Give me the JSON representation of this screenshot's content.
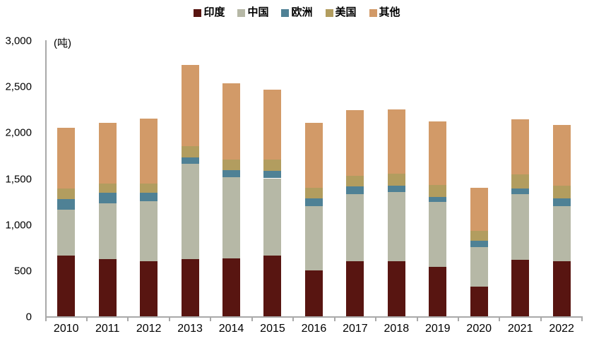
{
  "chart_data": {
    "type": "bar",
    "stacked": true,
    "title": "",
    "ylabel": "(吨)",
    "xlabel": "",
    "ylim": [
      0,
      3000
    ],
    "ytick_step": 500,
    "yticks": [
      "0",
      "500",
      "1,000",
      "1,500",
      "2,000",
      "2,500",
      "3,000"
    ],
    "grid": false,
    "legend_position": "top",
    "categories": [
      "2010",
      "2011",
      "2012",
      "2013",
      "2014",
      "2015",
      "2016",
      "2017",
      "2018",
      "2019",
      "2020",
      "2021",
      "2022"
    ],
    "series": [
      {
        "name": "印度",
        "color": "#581511",
        "values": [
          660,
          620,
          600,
          620,
          630,
          660,
          500,
          600,
          600,
          540,
          320,
          610,
          600
        ]
      },
      {
        "name": "中国",
        "color": "#b6b8a6",
        "values": [
          500,
          610,
          650,
          1040,
          880,
          840,
          700,
          730,
          750,
          700,
          430,
          720,
          600
        ]
      },
      {
        "name": "欧洲",
        "color": "#4f8195",
        "values": [
          110,
          110,
          90,
          70,
          80,
          80,
          80,
          80,
          70,
          60,
          70,
          60,
          80
        ]
      },
      {
        "name": "美国",
        "color": "#b29d5f",
        "values": [
          120,
          100,
          100,
          120,
          110,
          120,
          120,
          120,
          130,
          130,
          110,
          150,
          140
        ]
      },
      {
        "name": "其他",
        "color": "#d29a68",
        "values": [
          660,
          660,
          710,
          880,
          830,
          760,
          700,
          710,
          700,
          690,
          470,
          600,
          660
        ]
      }
    ],
    "totals": [
      2050,
      2100,
      2150,
      2730,
      2530,
      2460,
      2100,
      2240,
      2250,
      2120,
      1400,
      2140,
      2080
    ],
    "axis_color": "#a9a9a9",
    "text_color": "#000000"
  }
}
